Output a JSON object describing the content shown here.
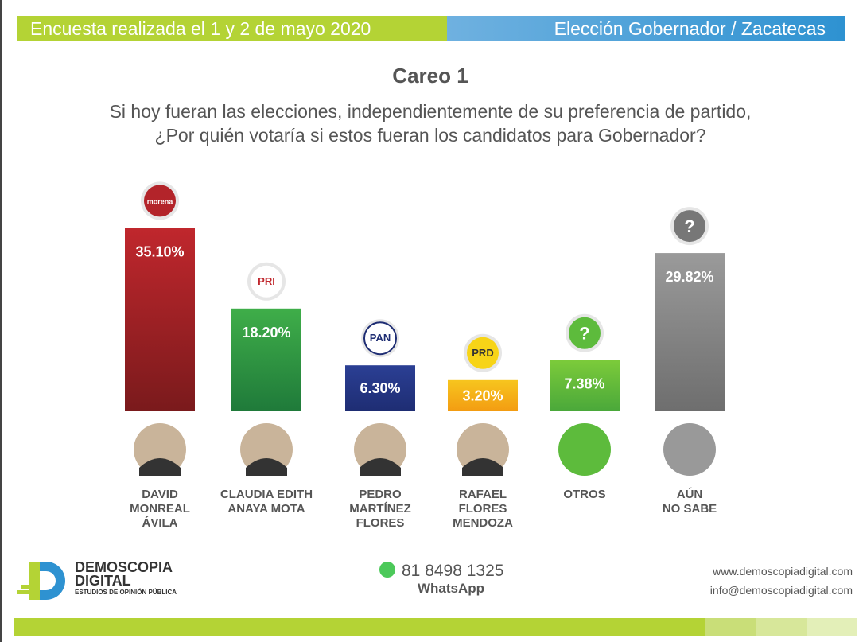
{
  "header": {
    "left": "Encuesta realizada el 1 y 2 de mayo 2020",
    "right": "Elección Gobernador / Zacatecas"
  },
  "title": "Careo 1",
  "question": [
    "Si hoy fueran las elecciones, independientemente de su preferencia de partido,",
    "¿Por quién votaría si estos fueran los candidatos para Gobernador?"
  ],
  "chart_data": {
    "type": "bar",
    "title": "Careo 1",
    "categories": [
      [
        "DAVID",
        "MONREAL",
        "ÁVILA"
      ],
      [
        "CLAUDIA EDITH",
        "ANAYA MOTA"
      ],
      [
        "PEDRO",
        "MARTÍNEZ",
        "FLORES"
      ],
      [
        "RAFAEL",
        "FLORES",
        "MENDOZA"
      ],
      [
        "OTROS"
      ],
      [
        "AÚN",
        "NO SABE"
      ]
    ],
    "parties": [
      "morena",
      "PRI",
      "PAN",
      "PRD",
      "?",
      "?"
    ],
    "values": [
      35.1,
      18.2,
      6.3,
      3.2,
      7.38,
      29.82
    ],
    "labels": [
      "35.10%",
      "18.20%",
      "6.30%",
      "3.20%",
      "7.38%",
      "29.82%"
    ],
    "colors": [
      [
        "#c0272d",
        "#7a1a1c"
      ],
      [
        "#3fae49",
        "#1f7a3a"
      ],
      [
        "#2b3f94",
        "#1e2d73"
      ],
      [
        "#f7c51e",
        "#f39c12"
      ],
      [
        "#7ccb3a",
        "#4aa83a"
      ],
      [
        "#9a9a9a",
        "#6e6e6e"
      ]
    ],
    "ylabel": "",
    "xlabel": ""
  },
  "footer": {
    "brand1": "DEMOSCOPIA",
    "brand2": "DIGITAL",
    "tagline": "ESTUDIOS DE OPINIÓN PÚBLICA",
    "phone": "81 8498 1325",
    "whatsapp": "WhatsApp",
    "web": "www.demoscopiadigital.com",
    "email": "info@demoscopiadigital.com"
  }
}
